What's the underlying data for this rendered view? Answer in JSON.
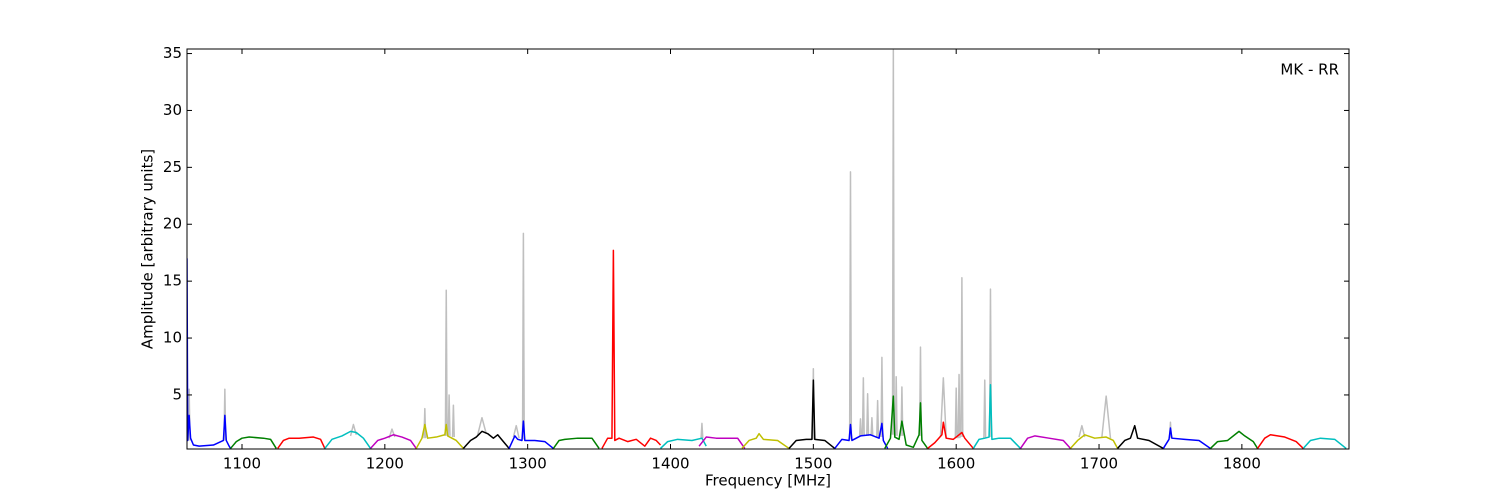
{
  "chart_data": {
    "type": "line",
    "xlabel": "Frequency [MHz]",
    "ylabel": "Amplitude [arbitrary units]",
    "annotation": "MK - RR",
    "xlim": [
      1061.5,
      1875
    ],
    "ylim": [
      0.25,
      35.4
    ],
    "xticks": [
      1100,
      1200,
      1300,
      1400,
      1500,
      1600,
      1700,
      1800
    ],
    "yticks": [
      5,
      10,
      15,
      20,
      25,
      30,
      35
    ],
    "series": [
      {
        "color": "#bfbfbf",
        "x": [
          1062.4,
          1063,
          1063.6,
          1064,
          1087.4,
          1088,
          1088.6,
          1089,
          1176,
          1178,
          1180,
          1181,
          1203,
          1205,
          1207,
          1208,
          1227.4,
          1228,
          1228.6,
          1229,
          1242.4,
          1243,
          1243.6,
          1244,
          1244.4,
          1245,
          1245.6,
          1246,
          1247.4,
          1248,
          1248.6,
          1249,
          1265,
          1268,
          1271,
          1272,
          1290,
          1292,
          1294,
          1295,
          1296.4,
          1297,
          1297.6,
          1298,
          1421.4,
          1422,
          1422.6,
          1423,
          1499.4,
          1500,
          1500.6,
          1501,
          1525.4,
          1526,
          1526.6,
          1527,
          1532.4,
          1533,
          1533.6,
          1534,
          1534.4,
          1535,
          1535.6,
          1536,
          1537.4,
          1538,
          1538.6,
          1539,
          1540.4,
          1541,
          1541.6,
          1542,
          1544.4,
          1545,
          1545.6,
          1546,
          1547.4,
          1548,
          1548.6,
          1549,
          1555.4,
          1556,
          1556.6,
          1557,
          1557.4,
          1558,
          1558.6,
          1559,
          1561.4,
          1562,
          1562.6,
          1563,
          1574.4,
          1575,
          1575.6,
          1576,
          1589,
          1591,
          1593,
          1594,
          1599.4,
          1600,
          1600.6,
          1601,
          1601.4,
          1602,
          1602.6,
          1603,
          1603.4,
          1604,
          1604.6,
          1605,
          1619.4,
          1620,
          1620.6,
          1621,
          1623.4,
          1624,
          1624.6,
          1625,
          1686,
          1688,
          1690,
          1691,
          1702,
          1705,
          1708,
          1709,
          1749.4,
          1750,
          1750.6,
          1751
        ],
        "values": [
          1.0,
          5.5,
          1.0,
          null,
          1.0,
          5.5,
          1.0,
          null,
          1.4,
          2.4,
          1.5,
          null,
          1.2,
          2.0,
          1.3,
          null,
          1.2,
          3.8,
          1.2,
          null,
          1.4,
          14.2,
          1.4,
          null,
          1.4,
          5,
          1.4,
          null,
          1.3,
          4.1,
          1.3,
          null,
          1.5,
          3.0,
          1.6,
          null,
          1.3,
          2.3,
          1.2,
          null,
          1.1,
          19.2,
          1.1,
          null,
          1.2,
          2.5,
          1.2,
          null,
          1.1,
          7.3,
          1.1,
          null,
          1.1,
          24.6,
          1.1,
          null,
          1.4,
          2.9,
          1.4,
          null,
          1.4,
          6.5,
          1.4,
          null,
          1.4,
          5.1,
          1.4,
          null,
          1.4,
          3.0,
          1.4,
          null,
          1.3,
          4.5,
          1.3,
          null,
          1.3,
          8.3,
          1.3,
          null,
          1.5,
          35.3,
          1.5,
          null,
          1.4,
          6.6,
          1.4,
          null,
          1.4,
          5.7,
          1.4,
          null,
          1.4,
          9.2,
          1.4,
          null,
          1.3,
          6.5,
          1.2,
          null,
          1.2,
          5.6,
          1.2,
          null,
          1.2,
          6.8,
          1.2,
          null,
          1.3,
          15.3,
          1.3,
          null,
          1.2,
          6.3,
          1.2,
          null,
          1.3,
          14.3,
          1.3,
          null,
          1.3,
          2.3,
          1.3,
          null,
          1.3,
          4.9,
          1.2,
          null,
          1.2,
          2.6,
          1.2,
          null
        ]
      },
      {
        "color": "#0000ff",
        "x": [
          1061.5,
          1062,
          1063,
          1064,
          1066,
          1070,
          1080,
          1087,
          1088,
          1089,
          1091,
          1092
        ],
        "values": [
          17,
          1,
          3.2,
          1.2,
          0.6,
          0.5,
          0.6,
          1.0,
          3.2,
          1.0,
          0.5,
          0.3
        ]
      },
      {
        "color": "#008000",
        "x": [
          1092,
          1096,
          1100,
          1105,
          1115,
          1120,
          1124
        ],
        "values": [
          0.3,
          0.9,
          1.2,
          1.3,
          1.2,
          1.1,
          0.3
        ]
      },
      {
        "color": "#ff0000",
        "x": [
          1125,
          1129,
          1133,
          1140,
          1150,
          1155,
          1158
        ],
        "values": [
          0.3,
          1.0,
          1.2,
          1.2,
          1.3,
          1.1,
          0.3
        ]
      },
      {
        "color": "#00bfbf",
        "x": [
          1158,
          1163,
          1170,
          1176,
          1180,
          1185,
          1190
        ],
        "values": [
          0.3,
          1.1,
          1.4,
          1.8,
          1.7,
          1.2,
          0.3
        ]
      },
      {
        "color": "#bf00bf",
        "x": [
          1190,
          1195,
          1200,
          1206,
          1212,
          1218,
          1222
        ],
        "values": [
          0.3,
          1.0,
          1.2,
          1.5,
          1.3,
          1.0,
          0.3
        ]
      },
      {
        "color": "#bfbf00",
        "x": [
          1222,
          1226,
          1228,
          1230,
          1236,
          1242,
          1243,
          1244,
          1250,
          1255
        ],
        "values": [
          0.3,
          1.2,
          2.4,
          1.2,
          1.3,
          1.5,
          2.4,
          1.4,
          1.0,
          0.3
        ]
      },
      {
        "color": "#000000",
        "x": [
          1255,
          1260,
          1264,
          1268,
          1272,
          1276,
          1279,
          1283,
          1287
        ],
        "values": [
          0.3,
          1.0,
          1.3,
          1.8,
          1.6,
          1.2,
          1.5,
          0.9,
          0.3
        ]
      },
      {
        "color": "#0000ff",
        "x": [
          1287,
          1291,
          1293,
          1296,
          1297,
          1298,
          1305,
          1312,
          1318
        ],
        "values": [
          0.3,
          1.4,
          1.1,
          1.0,
          2.7,
          1.0,
          1.0,
          0.9,
          0.3
        ]
      },
      {
        "color": "#008000",
        "x": [
          1318,
          1322,
          1326,
          1335,
          1345,
          1350
        ],
        "values": [
          0.3,
          1.0,
          1.1,
          1.2,
          1.2,
          0.3
        ]
      },
      {
        "color": "#ff0000",
        "x": [
          1352,
          1356,
          1359,
          1360,
          1361,
          1364,
          1370,
          1376,
          1382,
          1386,
          1390,
          1393
        ],
        "values": [
          0.3,
          1.2,
          1.2,
          17.7,
          1.0,
          1.2,
          0.9,
          1.1,
          0.5,
          1.2,
          1.0,
          0.6
        ]
      },
      {
        "color": "#00bfbf",
        "x": [
          1393,
          1398,
          1405,
          1415,
          1422,
          1425
        ],
        "values": [
          0.3,
          0.9,
          1.1,
          1.0,
          1.2,
          0.5
        ]
      },
      {
        "color": "#bf00bf",
        "x": [
          1420,
          1425,
          1432,
          1440,
          1447,
          1452
        ],
        "values": [
          0.5,
          1.3,
          1.2,
          1.2,
          1.2,
          0.3
        ]
      },
      {
        "color": "#bfbf00",
        "x": [
          1450,
          1455,
          1460,
          1462,
          1465,
          1475,
          1483
        ],
        "values": [
          0.3,
          1.0,
          1.2,
          1.6,
          1.1,
          1.0,
          0.3
        ]
      },
      {
        "color": "#000000",
        "x": [
          1483,
          1488,
          1495,
          1499,
          1500,
          1501,
          1508,
          1515
        ],
        "values": [
          0.3,
          1.0,
          1.1,
          1.1,
          6.3,
          1.1,
          1.0,
          0.3
        ]
      },
      {
        "color": "#0000ff",
        "x": [
          1515,
          1520,
          1525,
          1526,
          1527,
          1533,
          1540,
          1546,
          1548,
          1549,
          1552
        ],
        "values": [
          0.3,
          1.1,
          1.0,
          2.4,
          1.0,
          1.4,
          1.5,
          1.2,
          2.5,
          1.0,
          0.3
        ]
      },
      {
        "color": "#008000",
        "x": [
          1550,
          1554,
          1556,
          1557,
          1560,
          1562,
          1565,
          1570,
          1574,
          1575,
          1576,
          1580
        ],
        "values": [
          0.3,
          1.2,
          4.9,
          1.3,
          1.1,
          2.7,
          0.6,
          0.4,
          1.5,
          4.3,
          1.0,
          0.3
        ]
      },
      {
        "color": "#ff0000",
        "x": [
          1580,
          1585,
          1590,
          1591,
          1593,
          1598,
          1602,
          1604,
          1606,
          1612
        ],
        "values": [
          0.3,
          0.8,
          1.5,
          2.6,
          1.2,
          1.1,
          1.5,
          1.7,
          1.2,
          0.3
        ]
      },
      {
        "color": "#00bfbf",
        "x": [
          1612,
          1616,
          1620,
          1623,
          1624,
          1625,
          1630,
          1638,
          1645
        ],
        "values": [
          0.3,
          1.1,
          1.2,
          1.3,
          5.9,
          1.1,
          1.2,
          1.2,
          0.3
        ]
      },
      {
        "color": "#bf00bf",
        "x": [
          1645,
          1650,
          1655,
          1665,
          1675,
          1680
        ],
        "values": [
          0.3,
          1.2,
          1.4,
          1.2,
          1.0,
          0.3
        ]
      },
      {
        "color": "#bfbf00",
        "x": [
          1680,
          1685,
          1690,
          1697,
          1705,
          1710,
          1713
        ],
        "values": [
          0.3,
          1.0,
          1.5,
          1.2,
          1.3,
          1.0,
          0.3
        ]
      },
      {
        "color": "#000000",
        "x": [
          1713,
          1718,
          1722,
          1725,
          1727,
          1735,
          1745
        ],
        "values": [
          0.3,
          1.0,
          1.2,
          2.3,
          1.2,
          1.0,
          0.3
        ]
      },
      {
        "color": "#0000ff",
        "x": [
          1745,
          1749,
          1750,
          1751,
          1760,
          1770,
          1778
        ],
        "values": [
          0.3,
          1.1,
          2.1,
          1.2,
          1.1,
          1.0,
          0.3
        ]
      },
      {
        "color": "#008000",
        "x": [
          1778,
          1783,
          1790,
          1798,
          1802,
          1808,
          1811
        ],
        "values": [
          0.3,
          0.9,
          1.0,
          1.8,
          1.4,
          0.9,
          0.3
        ]
      },
      {
        "color": "#ff0000",
        "x": [
          1811,
          1816,
          1820,
          1830,
          1838,
          1843
        ],
        "values": [
          0.3,
          1.2,
          1.5,
          1.3,
          0.9,
          0.3
        ]
      },
      {
        "color": "#00bfbf",
        "x": [
          1843,
          1848,
          1855,
          1865,
          1873
        ],
        "values": [
          0.3,
          1.0,
          1.2,
          1.1,
          0.3
        ]
      }
    ]
  }
}
